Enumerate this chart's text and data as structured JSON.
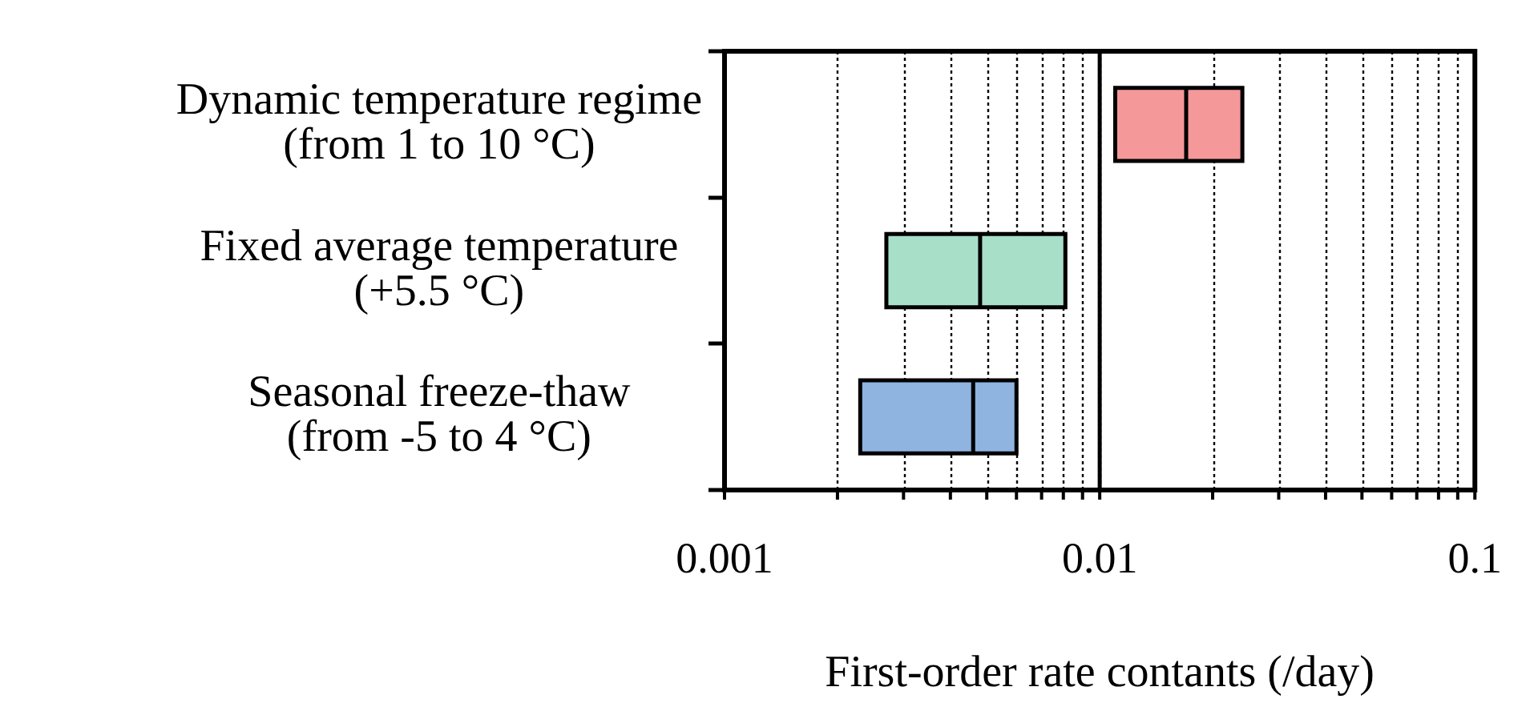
{
  "chart_data": {
    "type": "box",
    "orientation": "horizontal",
    "categories": [
      "Dynamic temperature regime\n(from 1 to 10 °C)",
      "Fixed average temperature\n(+5.5 °C)",
      "Seasonal freeze-thaw\n(from -5 to 4 °C)"
    ],
    "boxes": [
      {
        "low": 0.011,
        "q1": 0.011,
        "median": 0.017,
        "q3": 0.024,
        "high": 0.024
      },
      {
        "low": 0.0027,
        "q1": 0.0027,
        "median": 0.0048,
        "q3": 0.0081,
        "high": 0.0081
      },
      {
        "low": 0.0023,
        "q1": 0.0023,
        "median": 0.0046,
        "q3": 0.006,
        "high": 0.006
      }
    ],
    "colors": [
      "#f4989a",
      "#a8dfc9",
      "#8fb4e0"
    ],
    "xlabel": "First-order rate contants (/day)",
    "log": "x",
    "xlim": [
      0.001,
      0.1
    ],
    "xticks": [
      0.001,
      {
        "value": 0.002,
        "label": null
      },
      {
        "value": 0.003,
        "label": null
      },
      {
        "value": 0.004,
        "label": null
      },
      {
        "value": 0.005,
        "label": null
      },
      {
        "value": 0.006,
        "label": null
      },
      {
        "value": 0.007,
        "label": null
      },
      {
        "value": 0.008,
        "label": null
      },
      {
        "value": 0.009,
        "label": null
      },
      0.01,
      {
        "value": 0.02,
        "label": null
      },
      {
        "value": 0.03,
        "label": null
      },
      {
        "value": 0.04,
        "label": null
      },
      {
        "value": 0.05,
        "label": null
      },
      {
        "value": 0.06,
        "label": null
      },
      {
        "value": 0.07,
        "label": null
      },
      {
        "value": 0.08,
        "label": null
      },
      {
        "value": 0.09,
        "label": null
      },
      0.1
    ],
    "grid": "x",
    "ref_lines": [
      {
        "axis": "x",
        "value": 0.01
      }
    ]
  }
}
